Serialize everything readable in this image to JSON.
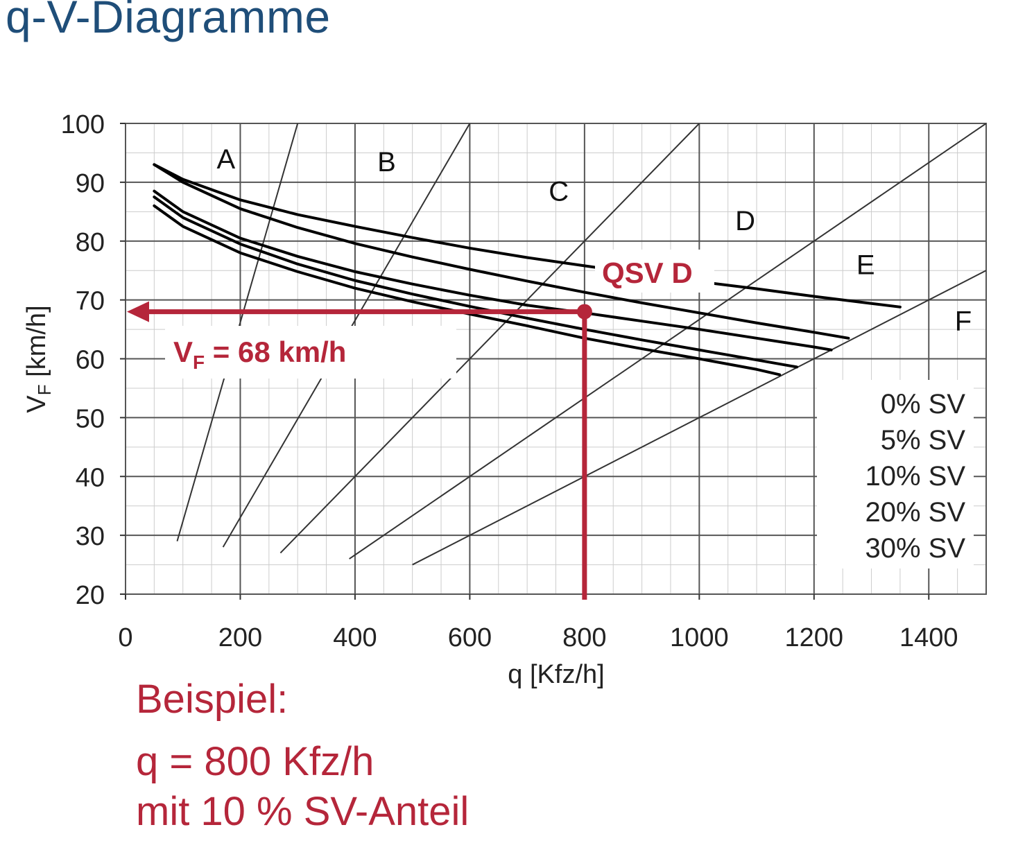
{
  "page": {
    "title": "q-V-Diagramme"
  },
  "example": {
    "heading": "Beispiel:",
    "line1": "q = 800 Kfz/h",
    "line2": "mit 10 % SV-Anteil"
  },
  "colors": {
    "title": "#1f4e79",
    "accent": "#b5263a",
    "curve": "#000000",
    "grid_major": "#555555",
    "grid_minor": "#cccccc"
  },
  "chart_data": {
    "type": "line",
    "xlabel": "q [Kfz/h]",
    "ylabel_main": "V",
    "ylabel_sub": "F",
    "ylabel_unit": " [km/h]",
    "xlim": [
      0,
      1500
    ],
    "ylim": [
      20,
      100
    ],
    "x_ticks": [
      0,
      200,
      400,
      600,
      800,
      1000,
      1200,
      1400
    ],
    "y_ticks": [
      20,
      30,
      40,
      50,
      60,
      70,
      80,
      90,
      100
    ],
    "grid": true,
    "minor_grid_step": {
      "x": 50,
      "y": 5
    },
    "series": [
      {
        "name": "0% SV",
        "x": [
          50,
          100,
          200,
          300,
          400,
          500,
          600,
          700,
          800,
          900,
          1000,
          1100,
          1200,
          1300,
          1350
        ],
        "y": [
          93,
          90.5,
          87,
          84.5,
          82.5,
          80.6,
          78.8,
          77.2,
          75.8,
          74.4,
          73.1,
          71.9,
          70.6,
          69.4,
          68.8
        ]
      },
      {
        "name": "5% SV",
        "x": [
          50,
          100,
          200,
          300,
          400,
          500,
          600,
          700,
          800,
          900,
          1000,
          1100,
          1200,
          1260
        ],
        "y": [
          93,
          90,
          85.5,
          82.3,
          79.6,
          77.3,
          75.2,
          73.2,
          71.3,
          69.5,
          67.8,
          66.1,
          64.5,
          63.5
        ]
      },
      {
        "name": "10% SV",
        "x": [
          50,
          100,
          200,
          300,
          400,
          500,
          600,
          700,
          800,
          900,
          1000,
          1100,
          1200,
          1230
        ],
        "y": [
          88.5,
          85,
          80.5,
          77.4,
          74.8,
          72.7,
          70.8,
          69.1,
          67.8,
          66.4,
          65,
          63.5,
          62,
          61.5
        ]
      },
      {
        "name": "20% SV",
        "x": [
          50,
          100,
          200,
          300,
          400,
          500,
          600,
          700,
          800,
          900,
          1000,
          1100,
          1170
        ],
        "y": [
          87.5,
          84,
          79.5,
          76.1,
          73.3,
          71,
          68.9,
          66.9,
          65,
          63.2,
          61.5,
          59.8,
          58.6
        ]
      },
      {
        "name": "30% SV",
        "x": [
          50,
          100,
          200,
          300,
          400,
          500,
          600,
          700,
          800,
          900,
          1000,
          1100,
          1140
        ],
        "y": [
          86,
          82.5,
          78,
          74.8,
          72,
          69.7,
          67.6,
          65.6,
          63.5,
          61.7,
          60,
          58.2,
          57.3
        ]
      }
    ],
    "qsv_boundaries": [
      {
        "from": [
          90,
          29
        ],
        "to": [
          300,
          100
        ]
      },
      {
        "from": [
          170,
          28
        ],
        "to": [
          600,
          100
        ]
      },
      {
        "from": [
          270,
          27
        ],
        "to": [
          1000,
          100
        ]
      },
      {
        "from": [
          390,
          26
        ],
        "to": [
          1500,
          100
        ]
      },
      {
        "from": [
          500,
          25
        ],
        "to": [
          1500,
          75
        ]
      }
    ],
    "qsv_levels": [
      {
        "label": "A",
        "x": 175,
        "y": 94
      },
      {
        "label": "B",
        "x": 455,
        "y": 93.5
      },
      {
        "label": "C",
        "x": 755,
        "y": 88.5
      },
      {
        "label": "D",
        "x": 1080,
        "y": 83.5
      },
      {
        "label": "E",
        "x": 1290,
        "y": 76
      },
      {
        "label": "F",
        "x": 1460,
        "y": 66.5
      }
    ],
    "annotations": {
      "qsv_label": "QSV D",
      "vf_main": "V",
      "vf_sub": "F",
      "vf_value": " = 68 km/h",
      "point": {
        "x": 800,
        "y": 68
      }
    }
  }
}
